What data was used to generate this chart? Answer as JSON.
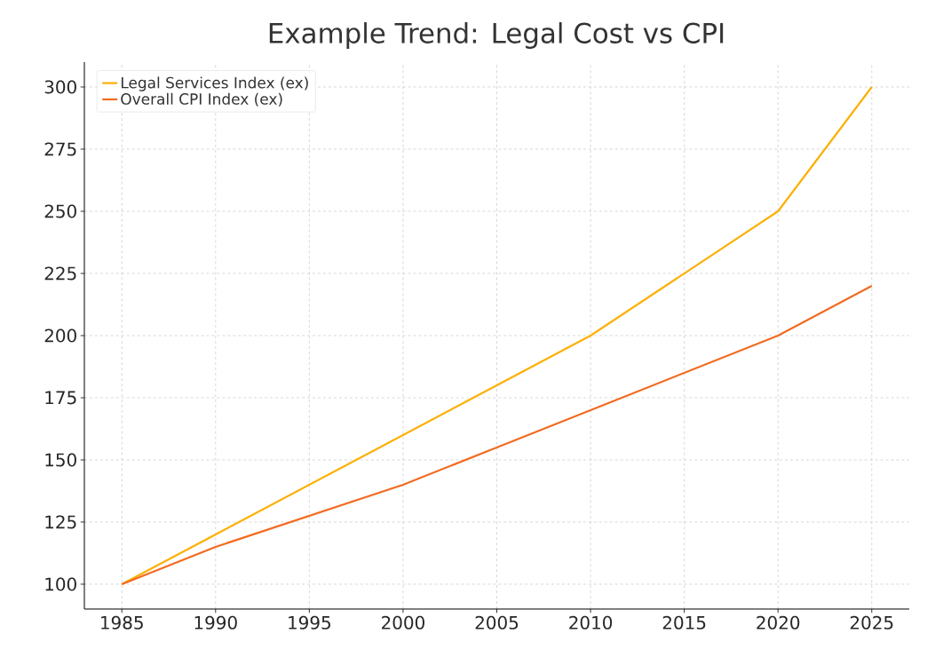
{
  "chart_data": {
    "type": "line",
    "title": "Example Trend: Legal Cost vs CPI",
    "x": [
      1985,
      1990,
      1995,
      2000,
      2005,
      2010,
      2015,
      2020,
      2025
    ],
    "series": [
      {
        "name": "Legal Services Index (ex)",
        "color": "#fcb006",
        "values": [
          100,
          120,
          140,
          160,
          180,
          200,
          225,
          250,
          300
        ]
      },
      {
        "name": "Overall CPI Index (ex)",
        "color": "#f26b21",
        "values": [
          100,
          115,
          127.5,
          140,
          155,
          170,
          185,
          200,
          220
        ]
      }
    ],
    "xlim": [
      1983,
      2027
    ],
    "ylim": [
      90,
      310
    ],
    "xticks": [
      1985,
      1990,
      1995,
      2000,
      2005,
      2010,
      2015,
      2020,
      2025
    ],
    "yticks": [
      100,
      125,
      150,
      175,
      200,
      225,
      250,
      275,
      300
    ],
    "grid": true,
    "legend": "top left",
    "marker": "none",
    "line_style": "solid"
  }
}
